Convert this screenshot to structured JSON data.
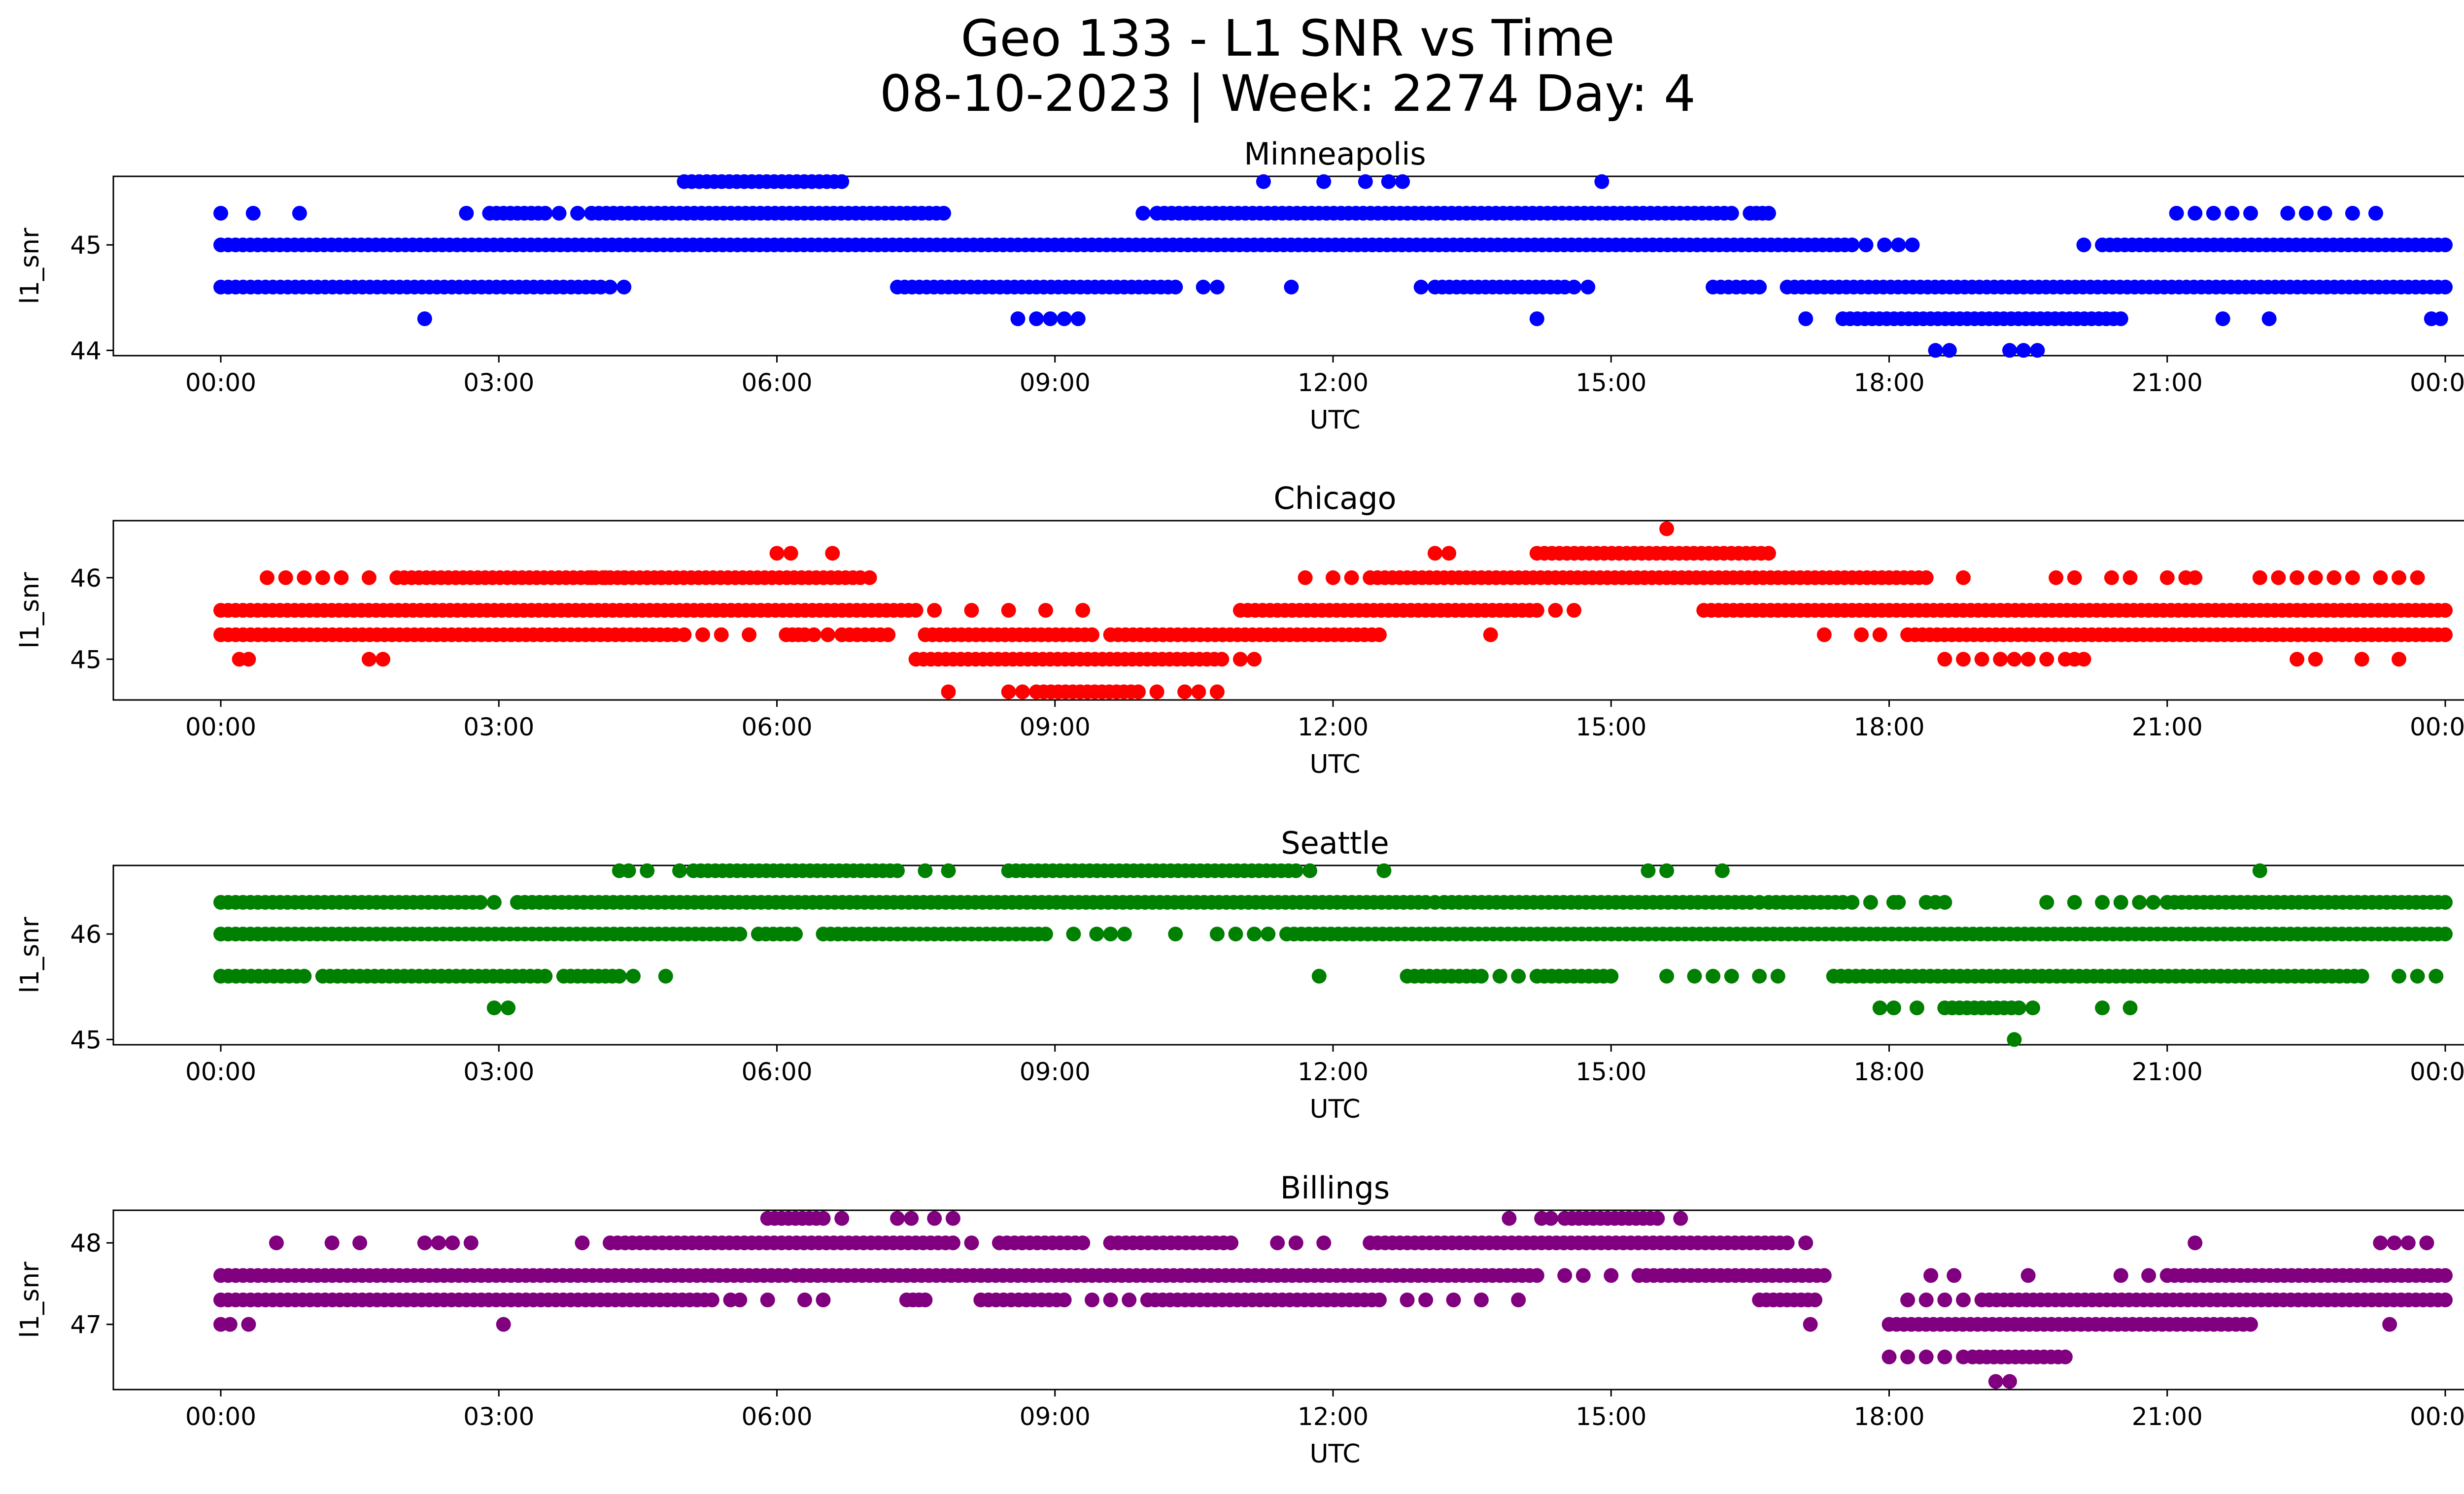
{
  "figure": {
    "title_line1": "Geo 133 - L1 SNR vs Time",
    "title_line2": "08-10-2023 | Week: 2274 Day: 4"
  },
  "chart_data": [
    {
      "type": "scatter",
      "title": "Minneapolis",
      "xlabel": "UTC",
      "ylabel": "l1_snr",
      "color": "#0000ff",
      "xlim": [
        "00:00",
        "24:00"
      ],
      "ylim": [
        43.95,
        45.65
      ],
      "yticks": [
        44,
        45
      ],
      "x_ticks": [
        "00:00",
        "03:00",
        "06:00",
        "09:00",
        "12:00",
        "15:00",
        "18:00",
        "21:00",
        "00:00"
      ],
      "bands": [
        {
          "y": 45.6,
          "ranges": [
            [
              5.0,
              6.7
            ]
          ],
          "singles": [
            11.25,
            11.9,
            12.35,
            12.6,
            12.75,
            14.9
          ]
        },
        {
          "y": 45.3,
          "ranges": [
            [
              2.9,
              3.5
            ],
            [
              4.0,
              7.8
            ],
            [
              10.1,
              16.3
            ],
            [
              16.5,
              16.7
            ]
          ],
          "singles": [
            0.0,
            0.35,
            0.85,
            2.65,
            3.65,
            3.85,
            9.95,
            21.1,
            21.3,
            21.5,
            21.7,
            21.9,
            22.3,
            22.5,
            22.7,
            23.0,
            23.25
          ]
        },
        {
          "y": 45.0,
          "ranges": [
            [
              0.0,
              17.6
            ],
            [
              20.3,
              24.0
            ]
          ],
          "singles": [
            17.75,
            17.95,
            18.1,
            18.25,
            20.1
          ]
        },
        {
          "y": 44.6,
          "ranges": [
            [
              0.0,
              4.1
            ],
            [
              7.3,
              10.3
            ],
            [
              13.1,
              14.5
            ],
            [
              16.1,
              16.6
            ],
            [
              16.9,
              24.0
            ]
          ],
          "singles": [
            4.2,
            4.35,
            10.6,
            10.75,
            11.55,
            12.95,
            14.6,
            14.75
          ]
        },
        {
          "y": 44.3,
          "ranges": [
            [
              17.5,
              20.5
            ]
          ],
          "singles": [
            2.2,
            8.6,
            8.8,
            8.95,
            9.1,
            9.25,
            14.2,
            17.1,
            21.6,
            22.1,
            23.85,
            23.95
          ]
        },
        {
          "y": 44.0,
          "ranges": [],
          "singles": [
            18.5,
            18.65,
            19.3,
            19.45,
            19.6
          ]
        }
      ]
    },
    {
      "type": "scatter",
      "title": "Chicago",
      "xlabel": "UTC",
      "ylabel": "l1_snr",
      "color": "#ff0000",
      "xlim": [
        "00:00",
        "24:00"
      ],
      "ylim": [
        44.5,
        46.7
      ],
      "yticks": [
        45,
        46
      ],
      "x_ticks": [
        "00:00",
        "03:00",
        "06:00",
        "09:00",
        "12:00",
        "15:00",
        "18:00",
        "21:00",
        "00:00"
      ],
      "bands": [
        {
          "y": 46.6,
          "ranges": [],
          "singles": [
            15.6
          ]
        },
        {
          "y": 46.3,
          "ranges": [
            [
              14.2,
              16.7
            ]
          ],
          "singles": [
            6.0,
            6.15,
            6.6,
            13.1,
            13.25
          ]
        },
        {
          "y": 46.0,
          "ranges": [
            [
              1.9,
              6.9
            ],
            [
              12.4,
              18.4
            ]
          ],
          "singles": [
            0.5,
            0.7,
            0.9,
            1.1,
            1.3,
            1.6,
            4.0,
            4.15,
            4.35,
            4.6,
            4.75,
            7.0,
            11.7,
            12.0,
            12.2,
            18.8,
            19.8,
            20.0,
            20.4,
            20.6,
            21.0,
            21.2,
            21.3,
            22.0,
            22.2,
            22.4,
            22.6,
            22.8,
            23.0,
            23.3,
            23.5,
            23.7
          ]
        },
        {
          "y": 45.6,
          "ranges": [
            [
              0.0,
              7.5
            ],
            [
              11.0,
              14.2
            ],
            [
              16.0,
              24.0
            ]
          ],
          "singles": [
            7.7,
            8.1,
            8.5,
            8.9,
            9.3,
            14.4,
            14.6
          ]
        },
        {
          "y": 45.3,
          "ranges": [
            [
              0.0,
              4.9
            ],
            [
              6.1,
              6.3
            ],
            [
              6.7,
              7.2
            ],
            [
              7.6,
              9.4
            ],
            [
              9.6,
              12.5
            ],
            [
              18.2,
              24.0
            ]
          ],
          "singles": [
            5.0,
            5.2,
            5.4,
            5.7,
            6.4,
            6.55,
            13.7,
            17.3,
            17.7,
            17.9
          ]
        },
        {
          "y": 45.0,
          "ranges": [
            [
              7.5,
              10.8
            ]
          ],
          "singles": [
            0.2,
            0.3,
            1.6,
            1.75,
            11.0,
            11.15,
            18.6,
            18.8,
            19.0,
            19.2,
            19.35,
            19.5,
            19.7,
            19.9,
            20.0,
            20.1,
            22.4,
            22.6,
            23.1,
            23.5
          ]
        },
        {
          "y": 44.6,
          "ranges": [
            [
              8.8,
              9.9
            ]
          ],
          "singles": [
            7.85,
            8.5,
            8.65,
            10.1,
            10.4,
            10.55,
            10.75
          ]
        }
      ]
    },
    {
      "type": "scatter",
      "title": "Seattle",
      "xlabel": "UTC",
      "ylabel": "l1_snr",
      "color": "#008000",
      "xlim": [
        "00:00",
        "24:00"
      ],
      "ylim": [
        44.95,
        46.65
      ],
      "yticks": [
        45,
        46
      ],
      "x_ticks": [
        "00:00",
        "03:00",
        "06:00",
        "09:00",
        "12:00",
        "15:00",
        "18:00",
        "21:00",
        "00:00"
      ],
      "bands": [
        {
          "y": 46.6,
          "ranges": [
            [
              5.1,
              7.3
            ],
            [
              8.5,
              11.6
            ]
          ],
          "singles": [
            4.3,
            4.4,
            4.6,
            4.95,
            7.6,
            7.85,
            11.75,
            12.55,
            15.4,
            15.6,
            16.2,
            22.0
          ]
        },
        {
          "y": 46.3,
          "ranges": [
            [
              0.0,
              2.8
            ],
            [
              3.2,
              13.0
            ],
            [
              13.2,
              16.5
            ],
            [
              16.7,
              17.5
            ],
            [
              21.0,
              24.0
            ]
          ],
          "singles": [
            2.95,
            13.1,
            16.6,
            17.6,
            17.8,
            18.05,
            18.1,
            18.4,
            18.5,
            18.6,
            19.7,
            20.0,
            20.3,
            20.5,
            20.7,
            20.85
          ]
        },
        {
          "y": 46.0,
          "ranges": [
            [
              0.0,
              5.6
            ],
            [
              5.8,
              6.2
            ],
            [
              6.5,
              8.9
            ],
            [
              11.5,
              24.0
            ]
          ],
          "singles": [
            9.2,
            9.45,
            9.6,
            9.75,
            10.3,
            10.75,
            10.95,
            11.15,
            11.3
          ]
        },
        {
          "y": 45.6,
          "ranges": [
            [
              0.0,
              0.9
            ],
            [
              1.1,
              3.5
            ],
            [
              3.7,
              4.3
            ],
            [
              12.8,
              13.6
            ],
            [
              14.2,
              15.0
            ],
            [
              17.4,
              23.1
            ]
          ],
          "singles": [
            4.45,
            4.8,
            11.85,
            13.8,
            14.0,
            15.6,
            15.9,
            16.1,
            16.3,
            16.6,
            16.8,
            23.5,
            23.7,
            23.9
          ]
        },
        {
          "y": 45.3,
          "ranges": [
            [
              18.6,
              19.4
            ]
          ],
          "singles": [
            2.95,
            3.1,
            17.9,
            18.05,
            18.3,
            19.55,
            20.3,
            20.6
          ]
        },
        {
          "y": 45.0,
          "ranges": [],
          "singles": [
            19.35
          ]
        }
      ]
    },
    {
      "type": "scatter",
      "title": "Billings",
      "xlabel": "UTC",
      "ylabel": "l1_snr",
      "color": "#800080",
      "xlim": [
        "00:00",
        "24:00"
      ],
      "ylim": [
        46.2,
        48.4
      ],
      "yticks": [
        47,
        48
      ],
      "x_ticks": [
        "00:00",
        "03:00",
        "06:00",
        "09:00",
        "12:00",
        "15:00",
        "18:00",
        "21:00",
        "00:00"
      ],
      "bands": [
        {
          "y": 48.3,
          "ranges": [
            [
              5.9,
              6.5
            ],
            [
              14.5,
              15.5
            ]
          ],
          "singles": [
            6.7,
            7.3,
            7.45,
            7.7,
            7.9,
            13.9,
            14.25,
            14.35,
            15.75
          ]
        },
        {
          "y": 48.0,
          "ranges": [
            [
              4.2,
              7.9
            ],
            [
              8.4,
              9.3
            ],
            [
              9.6,
              10.9
            ],
            [
              12.4,
              16.9
            ]
          ],
          "singles": [
            0.6,
            1.2,
            1.5,
            2.2,
            2.35,
            2.5,
            2.7,
            3.9,
            8.1,
            11.4,
            11.6,
            11.9,
            17.1,
            21.3,
            23.3,
            23.45,
            23.6,
            23.8
          ]
        },
        {
          "y": 47.6,
          "ranges": [
            [
              0.0,
              6.1
            ],
            [
              6.2,
              14.2
            ],
            [
              15.3,
              17.3
            ],
            [
              21.0,
              24.0
            ]
          ],
          "singles": [
            14.5,
            14.7,
            15.0,
            18.45,
            18.7,
            19.5,
            20.5,
            20.8,
            21.0
          ]
        },
        {
          "y": 47.3,
          "ranges": [
            [
              0.0,
              5.3
            ],
            [
              7.4,
              7.6
            ],
            [
              8.2,
              9.1
            ],
            [
              10.0,
              12.5
            ],
            [
              16.6,
              17.2
            ],
            [
              19.0,
              24.0
            ]
          ],
          "singles": [
            5.5,
            5.6,
            5.9,
            6.3,
            6.5,
            9.4,
            9.6,
            9.8,
            12.8,
            13.0,
            13.3,
            13.6,
            14.0,
            18.2,
            18.4,
            18.6,
            18.8
          ]
        },
        {
          "y": 47.0,
          "ranges": [
            [
              18.0,
              21.9
            ]
          ],
          "singles": [
            0.0,
            0.1,
            0.3,
            3.05,
            17.15,
            23.4
          ]
        },
        {
          "y": 46.6,
          "ranges": [
            [
              18.9,
              19.9
            ]
          ],
          "singles": [
            18.0,
            18.2,
            18.4,
            18.6,
            18.8
          ]
        },
        {
          "y": 46.3,
          "ranges": [],
          "singles": [
            19.15,
            19.3
          ]
        }
      ]
    }
  ]
}
